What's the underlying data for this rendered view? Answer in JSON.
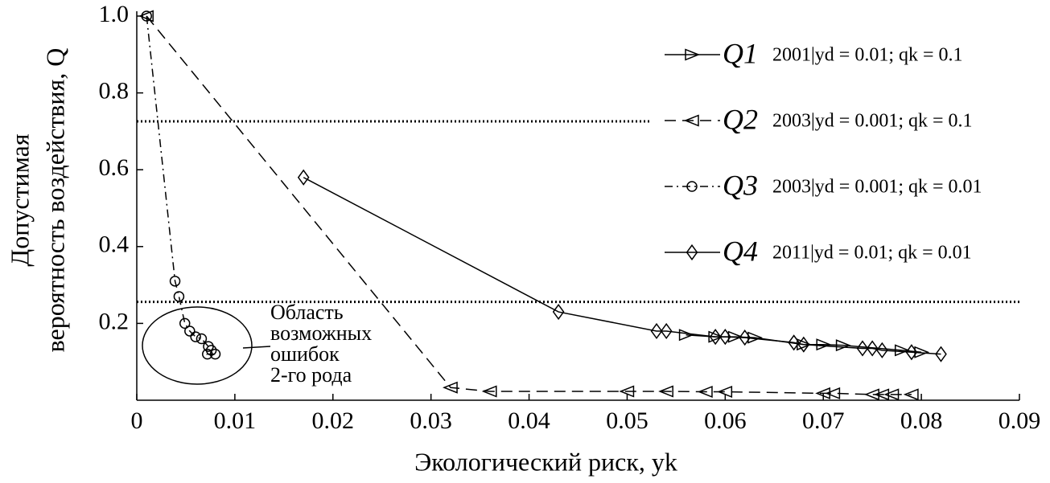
{
  "chart_data": {
    "type": "line",
    "xlabel": "Экологический риск, yk",
    "ylabel": [
      "Допустимая",
      "вероятность воздействия, Q"
    ],
    "xlim": [
      0,
      0.09
    ],
    "ylim": [
      0,
      1
    ],
    "xticks": [
      0,
      0.01,
      0.02,
      0.03,
      0.04,
      0.05,
      0.06,
      0.07,
      0.08,
      0.09
    ],
    "yticks": [
      0.2,
      0.4,
      0.6,
      0.8,
      {
        "value": 1,
        "label": "1.0"
      }
    ],
    "hlines": [
      {
        "value": 0.726,
        "x_end": 0.0525
      },
      {
        "value": 0.256,
        "x_end": 0.09
      }
    ],
    "annotation": [
      "Область",
      "возможных",
      "ошибок",
      "2-го рода"
    ],
    "series": [
      {
        "name": "Q1",
        "condition": "2001|yd = 0.01; qk = 0.1",
        "color": "#000000",
        "marker": "triangle-right",
        "dash": "solid",
        "x": [
          0.056,
          0.059,
          0.061,
          0.063,
          0.068,
          0.07,
          0.072,
          0.078,
          0.08
        ],
        "values": [
          0.17,
          0.165,
          0.165,
          0.163,
          0.145,
          0.145,
          0.143,
          0.13,
          0.125
        ]
      },
      {
        "name": "Q2",
        "condition": "2003|yd = 0.001; qk = 0.1",
        "color": "#000000",
        "marker": "triangle-left",
        "dash": "dashed",
        "x": [
          0.001,
          0.032,
          0.036,
          0.05,
          0.054,
          0.058,
          0.06,
          0.07,
          0.071,
          0.075,
          0.076,
          0.077,
          0.079
        ],
        "values": [
          1.0,
          0.033,
          0.023,
          0.023,
          0.023,
          0.022,
          0.022,
          0.018,
          0.018,
          0.015,
          0.015,
          0.015,
          0.015
        ]
      },
      {
        "name": "Q3",
        "condition": "2003|yd = 0.001; qk = 0.01",
        "color": "#000000",
        "marker": "circle",
        "dash": "dashdot",
        "x": [
          0.001,
          0.0039,
          0.0043,
          0.0049,
          0.0054,
          0.006,
          0.0066,
          0.0073,
          0.0076,
          0.0072,
          0.008
        ],
        "values": [
          1.0,
          0.31,
          0.27,
          0.2,
          0.18,
          0.165,
          0.16,
          0.14,
          0.13,
          0.12,
          0.12
        ]
      },
      {
        "name": "Q4",
        "condition": "2011|yd = 0.01; qk = 0.01",
        "color": "#000000",
        "marker": "diamond",
        "dash": "solid",
        "x": [
          0.017,
          0.043,
          0.053,
          0.054,
          0.059,
          0.06,
          0.062,
          0.067,
          0.068,
          0.074,
          0.075,
          0.076,
          0.079,
          0.082
        ],
        "values": [
          0.58,
          0.23,
          0.18,
          0.18,
          0.165,
          0.165,
          0.163,
          0.15,
          0.145,
          0.135,
          0.135,
          0.13,
          0.125,
          0.12
        ]
      }
    ]
  }
}
